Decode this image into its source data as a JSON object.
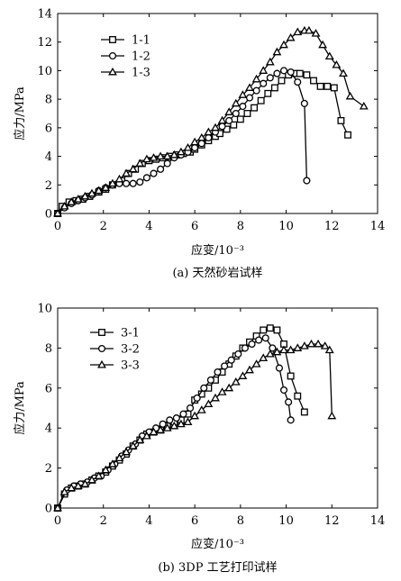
{
  "chart_data": [
    {
      "type": "line",
      "xlabel": "应变/10⁻³",
      "ylabel": "应力/MPa",
      "caption": "(a) 天然砂岩试样",
      "xlim": [
        0,
        14
      ],
      "ylim": [
        0,
        14
      ],
      "xticks": [
        0,
        2,
        4,
        6,
        8,
        10,
        12,
        14
      ],
      "yticks": [
        0,
        2,
        4,
        6,
        8,
        10,
        12,
        14
      ],
      "legend_position": "top-left",
      "series": [
        {
          "name": "1-1",
          "marker": "square",
          "x": [
            0,
            0.2,
            0.5,
            0.8,
            1.1,
            1.4,
            1.8,
            2.1,
            2.4,
            2.8,
            3.1,
            3.4,
            3.7,
            4.0,
            4.3,
            4.6,
            4.9,
            5.2,
            5.5,
            5.8,
            6.0,
            6.3,
            6.6,
            6.9,
            7.1,
            7.4,
            7.7,
            8.0,
            8.3,
            8.6,
            8.9,
            9.2,
            9.5,
            9.8,
            10.1,
            10.4,
            10.6,
            10.9,
            11.2,
            11.5,
            11.8,
            12.1,
            12.4,
            12.7
          ],
          "y": [
            0,
            0.5,
            0.8,
            0.9,
            1.0,
            1.2,
            1.5,
            1.7,
            2.0,
            2.3,
            2.8,
            3.1,
            3.5,
            3.7,
            3.8,
            3.9,
            4.0,
            4.1,
            4.2,
            4.3,
            4.5,
            4.8,
            5.1,
            5.4,
            5.6,
            5.9,
            6.2,
            6.6,
            7.0,
            7.4,
            7.9,
            8.4,
            8.8,
            9.3,
            9.7,
            9.8,
            9.8,
            9.7,
            9.3,
            8.9,
            8.9,
            8.8,
            6.5,
            5.5
          ]
        },
        {
          "name": "1-2",
          "marker": "circle",
          "x": [
            0,
            0.3,
            0.6,
            0.9,
            1.2,
            1.5,
            1.8,
            2.1,
            2.4,
            2.7,
            3.0,
            3.3,
            3.6,
            3.9,
            4.2,
            4.5,
            4.8,
            5.1,
            5.4,
            5.7,
            6.0,
            6.3,
            6.6,
            6.9,
            7.2,
            7.5,
            7.8,
            8.1,
            8.4,
            8.7,
            9.0,
            9.3,
            9.6,
            9.9,
            10.2,
            10.5,
            10.8,
            10.9
          ],
          "y": [
            0,
            0.4,
            0.7,
            0.9,
            1.1,
            1.3,
            1.6,
            1.8,
            2.0,
            2.1,
            2.1,
            2.1,
            2.2,
            2.5,
            2.8,
            3.1,
            3.5,
            3.9,
            4.1,
            4.3,
            4.6,
            4.9,
            5.3,
            5.7,
            6.1,
            6.5,
            7.0,
            7.5,
            8.1,
            8.6,
            9.1,
            9.5,
            9.8,
            10.0,
            9.9,
            9.2,
            7.7,
            2.3
          ]
        },
        {
          "name": "1-3",
          "marker": "triangle",
          "x": [
            0,
            0.3,
            0.6,
            0.9,
            1.2,
            1.5,
            1.8,
            2.1,
            2.4,
            2.7,
            3.0,
            3.3,
            3.6,
            3.9,
            4.2,
            4.5,
            4.8,
            5.1,
            5.4,
            5.7,
            6.0,
            6.3,
            6.6,
            6.9,
            7.2,
            7.5,
            7.8,
            8.1,
            8.4,
            8.7,
            9.0,
            9.3,
            9.6,
            9.9,
            10.2,
            10.5,
            10.8,
            11.0,
            11.3,
            11.6,
            11.9,
            12.2,
            12.5,
            12.8,
            13.4
          ],
          "y": [
            0,
            0.5,
            0.8,
            1.0,
            1.2,
            1.4,
            1.6,
            1.8,
            2.1,
            2.4,
            2.8,
            3.1,
            3.5,
            3.8,
            3.9,
            4.0,
            4.0,
            4.1,
            4.3,
            4.6,
            5.0,
            5.3,
            5.7,
            6.0,
            6.5,
            7.1,
            7.7,
            8.3,
            8.8,
            9.4,
            10.0,
            10.6,
            11.3,
            11.8,
            12.3,
            12.7,
            12.8,
            12.8,
            12.6,
            11.8,
            11.0,
            10.4,
            9.8,
            8.2,
            7.5
          ]
        }
      ]
    },
    {
      "type": "line",
      "xlabel": "应变/10⁻³",
      "ylabel": "应力/MPa",
      "caption": "(b) 3DP 工艺打印试样",
      "xlim": [
        0,
        14
      ],
      "ylim": [
        0,
        10
      ],
      "xticks": [
        0,
        2,
        4,
        6,
        8,
        10,
        12,
        14
      ],
      "yticks": [
        0,
        2,
        4,
        6,
        8,
        10
      ],
      "legend_position": "top-left",
      "series": [
        {
          "name": "3-1",
          "marker": "square",
          "x": [
            0,
            0.3,
            0.6,
            0.9,
            1.2,
            1.5,
            1.8,
            2.1,
            2.4,
            2.7,
            3.0,
            3.3,
            3.6,
            3.9,
            4.2,
            4.5,
            4.8,
            5.1,
            5.4,
            5.7,
            6.0,
            6.3,
            6.6,
            6.9,
            7.2,
            7.5,
            7.8,
            8.1,
            8.4,
            8.7,
            9.0,
            9.3,
            9.6,
            9.9,
            10.2,
            10.5,
            10.8
          ],
          "y": [
            0,
            0.7,
            1.0,
            1.1,
            1.2,
            1.4,
            1.6,
            1.8,
            2.1,
            2.4,
            2.7,
            3.1,
            3.4,
            3.7,
            3.8,
            3.9,
            4.1,
            4.3,
            4.4,
            4.7,
            5.4,
            5.7,
            6.0,
            6.4,
            6.8,
            7.2,
            7.6,
            8.0,
            8.3,
            8.6,
            8.9,
            9.0,
            8.9,
            8.2,
            6.6,
            5.6,
            4.8
          ]
        },
        {
          "name": "3-2",
          "marker": "circle",
          "x": [
            0,
            0.4,
            0.7,
            1.0,
            1.3,
            1.6,
            1.9,
            2.2,
            2.5,
            2.8,
            3.1,
            3.4,
            3.7,
            4.0,
            4.3,
            4.6,
            4.9,
            5.2,
            5.5,
            5.8,
            6.1,
            6.4,
            6.7,
            7.0,
            7.3,
            7.6,
            7.9,
            8.2,
            8.5,
            8.8,
            9.1,
            9.4,
            9.7,
            9.9,
            10.1,
            10.2
          ],
          "y": [
            0,
            0.9,
            1.1,
            1.2,
            1.3,
            1.5,
            1.6,
            1.9,
            2.2,
            2.6,
            2.9,
            3.2,
            3.6,
            3.8,
            4.0,
            4.2,
            4.4,
            4.5,
            4.7,
            5.0,
            5.5,
            6.0,
            6.4,
            6.8,
            7.1,
            7.4,
            7.7,
            8.0,
            8.2,
            8.4,
            8.5,
            8.0,
            7.0,
            5.9,
            5.3,
            4.4
          ]
        },
        {
          "name": "3-3",
          "marker": "triangle",
          "x": [
            0,
            0.3,
            0.6,
            0.9,
            1.2,
            1.5,
            1.8,
            2.1,
            2.4,
            2.7,
            3.0,
            3.3,
            3.6,
            3.9,
            4.2,
            4.5,
            4.8,
            5.1,
            5.4,
            5.7,
            6.0,
            6.3,
            6.6,
            6.9,
            7.2,
            7.5,
            7.8,
            8.1,
            8.4,
            8.7,
            9.0,
            9.3,
            9.6,
            9.9,
            10.2,
            10.5,
            10.8,
            11.1,
            11.4,
            11.7,
            11.9,
            12.0
          ],
          "y": [
            0,
            0.8,
            1.0,
            1.1,
            1.2,
            1.4,
            1.6,
            1.9,
            2.2,
            2.5,
            2.8,
            3.1,
            3.4,
            3.6,
            3.8,
            3.9,
            4.0,
            4.1,
            4.2,
            4.3,
            4.6,
            4.9,
            5.2,
            5.5,
            5.8,
            6.0,
            6.3,
            6.6,
            6.9,
            7.2,
            7.5,
            7.7,
            7.8,
            7.9,
            7.9,
            8.0,
            8.1,
            8.2,
            8.2,
            8.1,
            7.9,
            4.6
          ]
        }
      ]
    }
  ]
}
